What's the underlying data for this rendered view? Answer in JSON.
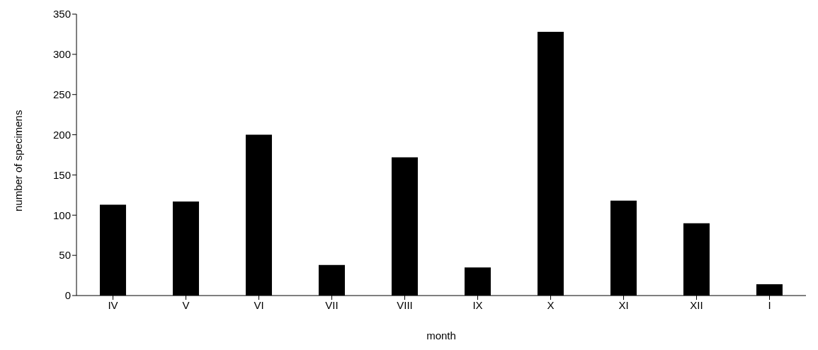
{
  "chart_data": {
    "type": "bar",
    "xlabel": "month",
    "ylabel": "number of specimens",
    "categories": [
      "IV",
      "V",
      "VI",
      "VII",
      "VIII",
      "IX",
      "X",
      "XI",
      "XII",
      "I"
    ],
    "values": [
      113,
      117,
      200,
      38,
      172,
      35,
      328,
      118,
      90,
      14
    ],
    "color": "#000000",
    "ylim": [
      0,
      350
    ],
    "yticks": [
      0,
      50,
      100,
      150,
      200,
      250,
      300,
      350
    ],
    "grid": false,
    "legend": false
  }
}
